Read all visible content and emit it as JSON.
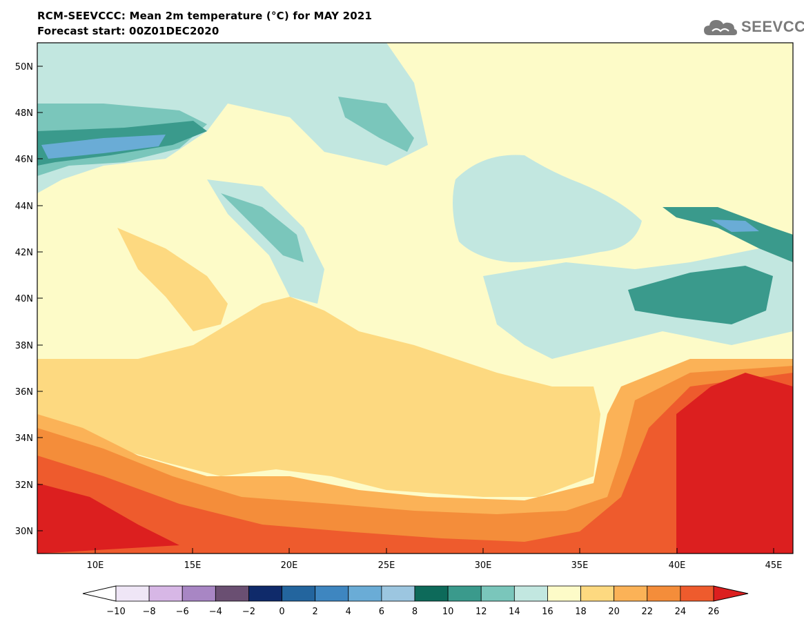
{
  "header": {
    "title": "RCM-SEEVCCC: Mean 2m temperature (°C) for MAY 2021",
    "subtitle": "Forecast start: 00Z01DEC2020"
  },
  "logo": {
    "text": "SEEVCCC",
    "icon": "cloud-icon"
  },
  "map": {
    "projection": "lat-lon",
    "lon_range": [
      7,
      46
    ],
    "lat_range": [
      29,
      51
    ],
    "lon_ticks": [
      "10E",
      "15E",
      "20E",
      "25E",
      "30E",
      "35E",
      "40E",
      "45E"
    ],
    "lat_ticks": [
      "50N",
      "48N",
      "46N",
      "44N",
      "42N",
      "40N",
      "38N",
      "36N",
      "34N",
      "32N",
      "30N"
    ],
    "variable": "Mean 2m temperature (°C)"
  },
  "colorbar": {
    "labels": [
      "−10",
      "−8",
      "−6",
      "−4",
      "−2",
      "0",
      "2",
      "4",
      "6",
      "8",
      "10",
      "12",
      "14",
      "16",
      "18",
      "20",
      "22",
      "24",
      "26"
    ],
    "colors": [
      "#efe6f6",
      "#d7b7e6",
      "#a886c4",
      "#6a4f72",
      "#0f2a6a",
      "#23659e",
      "#3e86c0",
      "#6aacd6",
      "#9cc6e0",
      "#0d6a5a",
      "#3a9a8c",
      "#7ac6bb",
      "#c2e7e0",
      "#fdfbc8",
      "#fdd980",
      "#fbb257",
      "#f48d3a",
      "#ee5b2d",
      "#dc1f1f"
    ],
    "under_color": "#ffffff",
    "over_color": "#dc1f1f"
  }
}
